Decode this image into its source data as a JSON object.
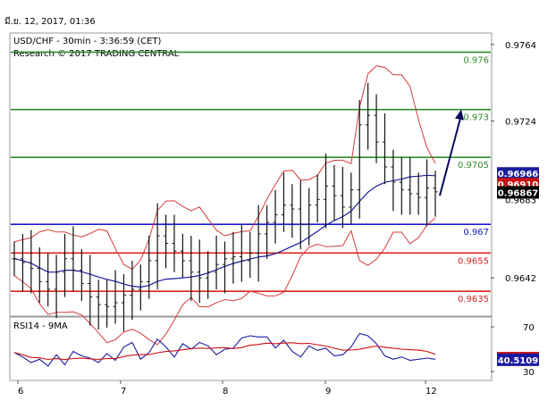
{
  "header": {
    "timestamp": "มี.ย. 12, 2017, 01:36",
    "instrument": "USD/CHF - 30min - 3:36:59 (CET)",
    "research": "Research © 2017 TRADING CENTRAL"
  },
  "chart_data": [
    {
      "type": "candlestick",
      "title": "USD/CHF - 30min - 3:36:59 (CET)",
      "subtitle": "Research © 2017 TRADING CENTRAL",
      "ylim": [
        0.9622,
        0.977
      ],
      "y_ticks": [
        "0.9764",
        "0.9724",
        "0.9642"
      ],
      "x_ticks": [
        "6",
        "7",
        "8",
        "9",
        "12"
      ],
      "grid": false,
      "levels": [
        {
          "label": "0.976",
          "value": 0.976,
          "color": "#2e8b2e"
        },
        {
          "label": "0.973",
          "value": 0.973,
          "color": "#2e8b2e"
        },
        {
          "label": "0.9705",
          "value": 0.9705,
          "color": "#2e8b2e"
        },
        {
          "label": "0.967",
          "value": 0.967,
          "color": "#1a1acc"
        },
        {
          "label": "0.9655",
          "value": 0.9655,
          "color": "#dd2222"
        },
        {
          "label": "0.9635",
          "value": 0.9635,
          "color": "#dd2222"
        }
      ],
      "price_tags": [
        {
          "label": "0.96966",
          "value": 0.96966,
          "bg": "#1a1aa0"
        },
        {
          "label": "0.96910",
          "value": 0.9691,
          "bg": "#cc1111"
        },
        {
          "label": "0.96867",
          "value": 0.96867,
          "bg": "#000000"
        }
      ],
      "partial_tick_label": "0.9683",
      "forecast_arrow": {
        "from": 0.9685,
        "to": 0.973,
        "color": "#0a0a5a"
      },
      "close_series": [
        0.9652,
        0.965,
        0.9647,
        0.964,
        0.9636,
        0.9645,
        0.9652,
        0.9646,
        0.9639,
        0.9632,
        0.9628,
        0.9627,
        0.9629,
        0.9633,
        0.9636,
        0.964,
        0.9651,
        0.9664,
        0.966,
        0.9656,
        0.9651,
        0.9645,
        0.9642,
        0.9645,
        0.9649,
        0.9652,
        0.9653,
        0.9651,
        0.9655,
        0.9665,
        0.9671,
        0.9675,
        0.968,
        0.9678,
        0.967,
        0.968,
        0.9683,
        0.969,
        0.9685,
        0.9679,
        0.9688,
        0.9722,
        0.9727,
        0.9713,
        0.97,
        0.9692,
        0.9688,
        0.9686,
        0.9684,
        0.9689,
        0.9687
      ]
    },
    {
      "type": "line",
      "title": "RSI14 - 9MA",
      "ylim": [
        22,
        78
      ],
      "y_ticks": [
        "70",
        "30"
      ],
      "series": [],
      "value_tags": [
        {
          "label": "41.9531",
          "value": 41.9531,
          "bg": "#cc1111"
        },
        {
          "label": "40.5109",
          "value": 40.5109,
          "bg": "#1a1aa0"
        }
      ],
      "rsi_series": [
        47,
        43,
        38,
        41,
        35,
        45,
        36,
        48,
        44,
        42,
        38,
        46,
        40,
        52,
        56,
        41,
        47,
        59,
        52,
        43,
        55,
        50,
        56,
        53,
        45,
        50,
        51,
        60,
        62,
        61,
        61,
        51,
        58,
        48,
        43,
        53,
        49,
        51,
        44,
        45,
        52,
        64,
        62,
        55,
        44,
        41,
        43,
        40,
        41,
        42,
        41
      ]
    }
  ]
}
